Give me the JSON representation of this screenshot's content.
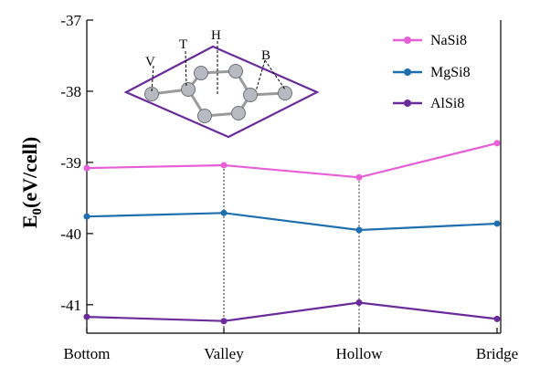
{
  "chart_data": {
    "type": "line",
    "categories": [
      "Bottom",
      "Valley",
      "Hollow",
      "Bridge"
    ],
    "ylabel_main": "E",
    "ylabel_sub": "0",
    "ylabel_unit": "(eV/cell)",
    "ylim": [
      -41.4,
      -37
    ],
    "yticks": [
      -37,
      -38,
      -39,
      -40,
      -41
    ],
    "ytick_labels": [
      "-37",
      "-38",
      "-39",
      "-40",
      "-41"
    ],
    "grid": false,
    "legend_position": "top-right",
    "series": [
      {
        "name": "NaSi8",
        "color": "#e65fd6",
        "values": [
          -39.08,
          -39.04,
          -39.21,
          -38.73
        ]
      },
      {
        "name": "MgSi8",
        "color": "#1f6fae",
        "values": [
          -39.76,
          -39.71,
          -39.95,
          -39.86
        ]
      },
      {
        "name": "AlSi8",
        "color": "#6a2c9a",
        "values": [
          -41.17,
          -41.23,
          -40.97,
          -41.2
        ]
      }
    ],
    "inset": {
      "labels": [
        "V",
        "T",
        "H",
        "B"
      ],
      "outline_color": "#6a2c9a"
    }
  }
}
